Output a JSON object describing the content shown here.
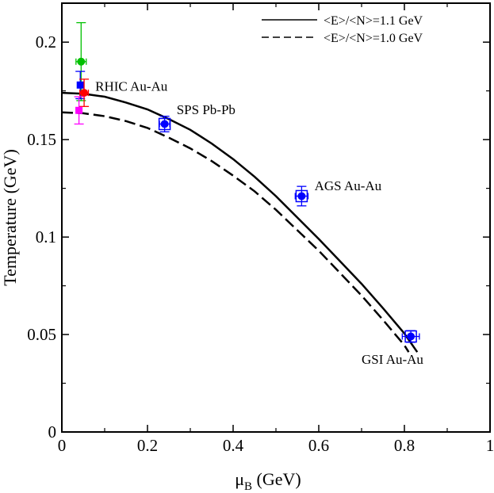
{
  "chart_data": {
    "type": "scatter",
    "xlabel": {
      "main": "μ",
      "sub": "B",
      "unit": " (GeV)"
    },
    "ylabel": "Temperature (GeV)",
    "xlim": [
      0,
      1
    ],
    "ylim": [
      0,
      0.22
    ],
    "x_ticks": [
      {
        "v": 0,
        "label": "0"
      },
      {
        "v": 0.2,
        "label": "0.2"
      },
      {
        "v": 0.4,
        "label": "0.4"
      },
      {
        "v": 0.6,
        "label": "0.6"
      },
      {
        "v": 0.8,
        "label": "0.8"
      },
      {
        "v": 1,
        "label": "1"
      }
    ],
    "y_ticks": [
      {
        "v": 0,
        "label": "0"
      },
      {
        "v": 0.05,
        "label": "0.05"
      },
      {
        "v": 0.1,
        "label": "0.1"
      },
      {
        "v": 0.15,
        "label": "0.15"
      },
      {
        "v": 0.2,
        "label": "0.2"
      }
    ],
    "legend": {
      "position": "top-right",
      "entries": [
        {
          "label": "<E>/<N>=1.1 GeV",
          "style": "solid"
        },
        {
          "label": "<E>/<N>=1.0 GeV",
          "style": "dashed"
        }
      ]
    },
    "curves": [
      {
        "name": "<E>/<N>=1.1 GeV",
        "style": "solid",
        "x": [
          0.0,
          0.05,
          0.1,
          0.15,
          0.2,
          0.25,
          0.3,
          0.35,
          0.4,
          0.45,
          0.5,
          0.55,
          0.6,
          0.65,
          0.7,
          0.75,
          0.8,
          0.83
        ],
        "y": [
          0.174,
          0.1735,
          0.172,
          0.169,
          0.1655,
          0.1605,
          0.155,
          0.148,
          0.14,
          0.131,
          0.121,
          0.11,
          0.099,
          0.0875,
          0.076,
          0.0635,
          0.0505,
          0.041
        ]
      },
      {
        "name": "<E>/<N>=1.0 GeV",
        "style": "dashed",
        "x": [
          0.0,
          0.05,
          0.1,
          0.15,
          0.2,
          0.25,
          0.3,
          0.35,
          0.4,
          0.45,
          0.5,
          0.55,
          0.6,
          0.65,
          0.7,
          0.75,
          0.8,
          0.81
        ],
        "y": [
          0.164,
          0.1635,
          0.162,
          0.1595,
          0.156,
          0.151,
          0.1455,
          0.139,
          0.1315,
          0.1235,
          0.114,
          0.1035,
          0.093,
          0.0815,
          0.07,
          0.0575,
          0.0445,
          0.041
        ]
      }
    ],
    "points": [
      {
        "x": 0.045,
        "y": 0.19,
        "xerr": 0.012,
        "yerr_up": 0.02,
        "yerr_down": 0.02,
        "color": "#00c000",
        "marker": "circle"
      },
      {
        "x": 0.043,
        "y": 0.178,
        "xerr": 0.006,
        "yerr_up": 0.007,
        "yerr_down": 0.007,
        "color": "#0000ff",
        "marker": "square"
      },
      {
        "x": 0.052,
        "y": 0.174,
        "xerr": 0.01,
        "yerr_up": 0.007,
        "yerr_down": 0.007,
        "color": "#ff0000",
        "marker": "circle"
      },
      {
        "x": 0.04,
        "y": 0.165,
        "xerr": 0.007,
        "yerr_up": 0.007,
        "yerr_down": 0.007,
        "color": "#ff00ff",
        "marker": "square"
      },
      {
        "x": 0.24,
        "y": 0.158,
        "xerr": 0.012,
        "yerr_up": 0.004,
        "yerr_down": 0.004,
        "color": "#0000ff",
        "marker": "circle",
        "box": true
      },
      {
        "x": 0.56,
        "y": 0.121,
        "xerr": 0.015,
        "yerr_up": 0.005,
        "yerr_down": 0.005,
        "color": "#0000ff",
        "marker": "circle",
        "box": true
      },
      {
        "x": 0.815,
        "y": 0.049,
        "xerr": 0.02,
        "yerr_up": 0.003,
        "yerr_down": 0.003,
        "color": "#0000ff",
        "marker": "circle",
        "box": true
      }
    ],
    "annotations": [
      {
        "text": "RHIC Au-Au",
        "x": 0.078,
        "y": 0.175
      },
      {
        "text": "SPS Pb-Pb",
        "x": 0.268,
        "y": 0.163
      },
      {
        "text": "AGS Au-Au",
        "x": 0.59,
        "y": 0.124
      },
      {
        "text": "GSI Au-Au",
        "x": 0.7,
        "y": 0.035
      }
    ]
  }
}
